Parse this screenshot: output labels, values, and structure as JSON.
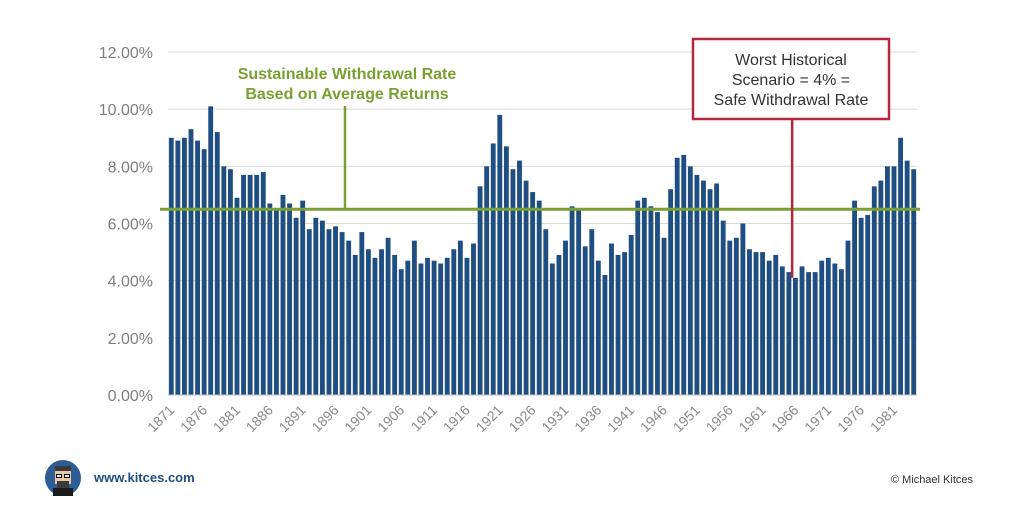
{
  "chart_data": {
    "type": "bar",
    "title": "",
    "xlabel": "",
    "ylabel": "",
    "ylim": [
      0,
      12
    ],
    "y_ticks": [
      "0.00%",
      "2.00%",
      "4.00%",
      "6.00%",
      "8.00%",
      "10.00%",
      "12.00%"
    ],
    "x_start_year": 1871,
    "x_ticks": [
      "1871",
      "1876",
      "1881",
      "1886",
      "1891",
      "1896",
      "1901",
      "1906",
      "1911",
      "1916",
      "1921",
      "1926",
      "1931",
      "1936",
      "1941",
      "1946",
      "1951",
      "1956",
      "1961",
      "1966",
      "1971",
      "1976",
      "1981"
    ],
    "values": [
      9.0,
      8.9,
      9.0,
      9.3,
      8.9,
      8.6,
      10.1,
      9.2,
      8.0,
      7.9,
      6.9,
      7.7,
      7.7,
      7.7,
      7.8,
      6.7,
      6.5,
      7.0,
      6.7,
      6.2,
      6.8,
      5.8,
      6.2,
      6.1,
      5.8,
      5.9,
      5.7,
      5.4,
      4.9,
      5.7,
      5.1,
      4.8,
      5.1,
      5.5,
      4.9,
      4.4,
      4.7,
      5.4,
      4.6,
      4.8,
      4.7,
      4.6,
      4.8,
      5.1,
      5.4,
      4.8,
      5.3,
      7.3,
      8.0,
      8.8,
      9.8,
      8.7,
      7.9,
      8.2,
      7.5,
      7.1,
      6.8,
      5.8,
      4.6,
      4.9,
      5.4,
      6.6,
      6.5,
      5.2,
      5.8,
      4.7,
      4.2,
      5.3,
      4.9,
      5.0,
      5.6,
      6.8,
      6.9,
      6.6,
      6.4,
      5.5,
      7.2,
      8.3,
      8.4,
      8.0,
      7.7,
      7.5,
      7.2,
      7.4,
      6.1,
      5.4,
      5.5,
      6.0,
      5.1,
      5.0,
      5.0,
      4.7,
      4.9,
      4.5,
      4.3,
      4.1,
      4.5,
      4.3,
      4.3,
      4.7,
      4.8,
      4.6,
      4.4,
      5.4,
      6.8,
      6.2,
      6.3,
      7.3,
      7.5,
      8.0,
      8.0,
      9.0,
      8.2,
      7.9
    ],
    "reference_line": {
      "value": 6.5,
      "label_line1": "Sustainable Withdrawal Rate",
      "label_line2": "Based on Average Returns",
      "color": "#7aa032"
    },
    "annotation": {
      "line1": "Worst Historical",
      "line2": "Scenario = 4% =",
      "line3": "Safe Withdrawal Rate",
      "target_year": 1966,
      "target_value": 4.1,
      "color": "#b5283a"
    },
    "bar_color": "#1f4e82",
    "grid": true
  },
  "footer": {
    "site": "www.kitces.com",
    "credit": "© Michael Kitces"
  }
}
